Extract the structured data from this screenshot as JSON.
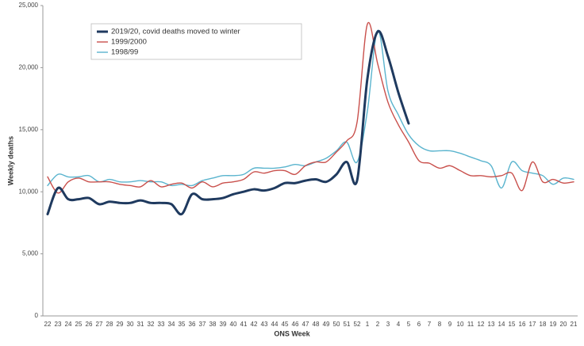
{
  "chart_data": {
    "type": "line",
    "x_label": "ONS Week",
    "y_label": "Weekly deaths",
    "categories": [
      "22",
      "23",
      "24",
      "25",
      "26",
      "27",
      "28",
      "29",
      "30",
      "31",
      "32",
      "33",
      "34",
      "35",
      "36",
      "37",
      "38",
      "39",
      "40",
      "41",
      "42",
      "43",
      "44",
      "45",
      "46",
      "47",
      "48",
      "49",
      "50",
      "51",
      "52",
      "1",
      "2",
      "3",
      "4",
      "5",
      "6",
      "7",
      "8",
      "9",
      "10",
      "11",
      "12",
      "13",
      "14",
      "15",
      "16",
      "17",
      "18",
      "19",
      "20",
      "21"
    ],
    "series": [
      {
        "name": "2019/20, covid deaths moved to winter",
        "color": "#1f3a5f",
        "width": 3,
        "values": [
          8200,
          10300,
          9400,
          9400,
          9500,
          9000,
          9200,
          9100,
          9100,
          9300,
          9100,
          9100,
          9000,
          8200,
          9800,
          9400,
          9400,
          9500,
          9800,
          10000,
          10200,
          10100,
          10300,
          10700,
          10700,
          10900,
          11000,
          10800,
          11400,
          12400,
          10900,
          19100,
          22900,
          20900,
          18000,
          15500,
          null,
          null,
          null,
          null,
          null,
          null,
          null,
          null,
          null,
          null,
          null,
          null,
          null,
          null,
          null,
          null
        ]
      },
      {
        "name": "1999/2000",
        "color": "#c9504c",
        "width": 1.4,
        "values": [
          11200,
          9900,
          10800,
          11100,
          10800,
          10800,
          10800,
          10600,
          10500,
          10400,
          10900,
          10400,
          10600,
          10700,
          10300,
          10800,
          10400,
          10700,
          10800,
          11000,
          11600,
          11500,
          11700,
          11700,
          11400,
          12100,
          12400,
          12400,
          13200,
          14100,
          15600,
          23500,
          20300,
          17200,
          15400,
          14000,
          12500,
          12300,
          11900,
          12100,
          11700,
          11300,
          11300,
          11200,
          11300,
          11500,
          10100,
          12400,
          10800,
          11000,
          10700,
          10800
        ]
      },
      {
        "name": "1998/99",
        "color": "#5ab4ce",
        "width": 1.4,
        "values": [
          10500,
          11400,
          11200,
          11200,
          11300,
          10800,
          11000,
          10800,
          10800,
          10900,
          10800,
          10800,
          10500,
          10600,
          10500,
          10900,
          11100,
          11300,
          11300,
          11400,
          11900,
          11900,
          11900,
          12000,
          12200,
          12100,
          12400,
          12700,
          13300,
          14000,
          12400,
          16500,
          23000,
          18100,
          16200,
          14600,
          13700,
          13300,
          13300,
          13300,
          13100,
          12800,
          12500,
          12100,
          10300,
          12400,
          11700,
          11500,
          11300,
          10600,
          11100,
          11000
        ]
      }
    ],
    "ylim": [
      0,
      25000
    ],
    "yticks": [
      0,
      {
        "value": 5000,
        "label": "5,000"
      },
      {
        "value": 10000,
        "label": "10,000"
      },
      {
        "value": 15000,
        "label": "15,000"
      },
      {
        "value": 20000,
        "label": "20,000"
      },
      {
        "value": 25000,
        "label": "25,000"
      }
    ],
    "grid": false,
    "legend": "top-left"
  }
}
